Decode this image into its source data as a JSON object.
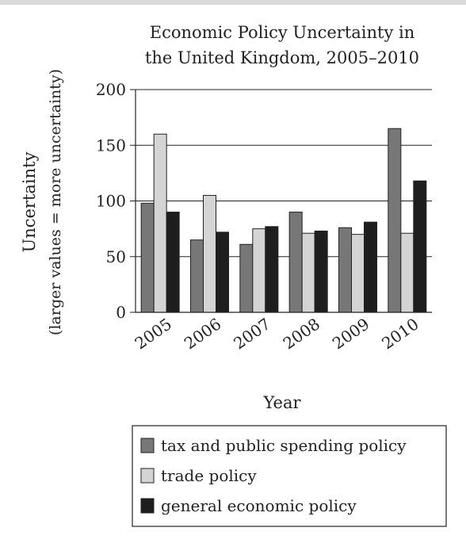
{
  "chart_data": {
    "type": "bar",
    "title": "Economic Policy Uncertainty in the United Kingdom, 2005–2010",
    "title_lines": [
      "Economic Policy Uncertainty in",
      "the United Kingdom, 2005–2010"
    ],
    "xlabel": "Year",
    "ylabel": "Uncertainty",
    "ylabel_sub": "(larger values = more uncertainty)",
    "categories": [
      "2005",
      "2006",
      "2007",
      "2008",
      "2009",
      "2010"
    ],
    "ylim": [
      0,
      200
    ],
    "yticks": [
      0,
      50,
      100,
      150,
      200
    ],
    "grid": true,
    "legend_position": "bottom",
    "series": [
      {
        "name": "tax and public spending policy",
        "color": "#777777",
        "values": [
          98,
          65,
          61,
          90,
          76,
          165
        ]
      },
      {
        "name": "trade policy",
        "color": "#d4d4d4",
        "values": [
          160,
          105,
          75,
          71,
          70,
          71
        ]
      },
      {
        "name": "general economic policy",
        "color": "#1e1e1e",
        "values": [
          90,
          72,
          77,
          73,
          81,
          118
        ]
      }
    ]
  }
}
